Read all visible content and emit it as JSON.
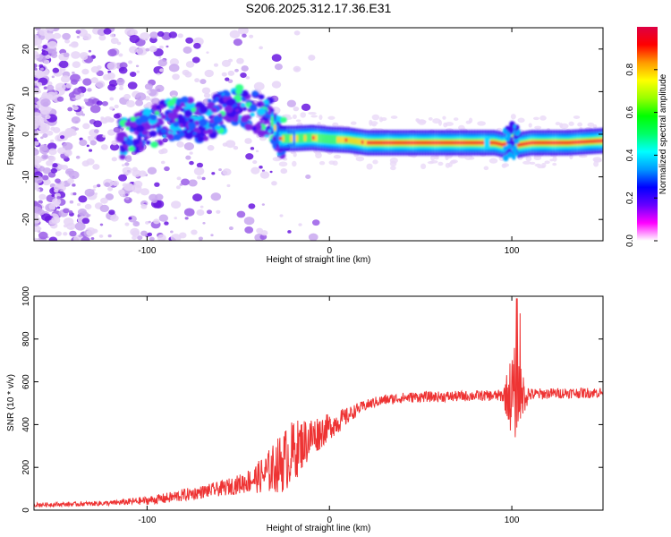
{
  "title": "S206.2025.312.17.36.E31",
  "chart_data": [
    {
      "type": "heatmap",
      "title": "S206.2025.312.17.36.E31",
      "xlabel": "Height of straight line (km)",
      "ylabel": "Frequency (Hz)",
      "xlim": [
        -162,
        150
      ],
      "ylim": [
        -25,
        25
      ],
      "xticks": [
        -100,
        0,
        100
      ],
      "yticks": [
        -20,
        -10,
        0,
        10,
        20
      ],
      "colorbar": {
        "label": "Normalized spectral amplitude",
        "range": [
          0,
          1
        ],
        "ticks": [
          0.0,
          0.2,
          0.4,
          0.6,
          0.8
        ],
        "colors": [
          "#ffffff",
          "#ff00ff",
          "#6600ff",
          "#0000ff",
          "#0099ff",
          "#00ffff",
          "#00ff66",
          "#00ff00",
          "#99ff00",
          "#ffff00",
          "#ff9900",
          "#ff0000",
          "#dd0044"
        ]
      },
      "ridge": {
        "x": [
          -110,
          -100,
          -90,
          -80,
          -70,
          -60,
          -50,
          -40,
          -33,
          -28,
          -20,
          -10,
          0,
          10,
          20,
          40,
          60,
          80,
          90,
          95,
          100,
          103,
          110,
          130,
          150
        ],
        "y": [
          -1,
          1,
          3,
          4,
          3,
          5,
          7,
          5,
          4,
          -1,
          -1,
          -0.8,
          -1.2,
          -1.4,
          -2,
          -2,
          -2,
          -2,
          -2,
          -2.5,
          -1,
          -2.5,
          -2,
          -2,
          -1.5
        ]
      }
    },
    {
      "type": "line",
      "xlabel": "Height of straight line (km)",
      "ylabel": "SNR (10 * v/v)",
      "xlim": [
        -162,
        150
      ],
      "ylim": [
        0,
        1000
      ],
      "xticks": [
        -100,
        0,
        100
      ],
      "yticks": [
        0,
        200,
        400,
        600,
        800,
        1000
      ],
      "series": [
        {
          "name": "SNR",
          "color": "#ee3333",
          "x": [
            -162,
            -140,
            -120,
            -100,
            -90,
            -80,
            -70,
            -60,
            -50,
            -45,
            -40,
            -35,
            -30,
            -25,
            -20,
            -15,
            -10,
            -5,
            0,
            5,
            10,
            15,
            20,
            25,
            30,
            40,
            50,
            60,
            70,
            80,
            90,
            95,
            100,
            103,
            105,
            110,
            120,
            130,
            140,
            150
          ],
          "values": [
            25,
            28,
            33,
            45,
            55,
            70,
            85,
            100,
            120,
            135,
            150,
            170,
            200,
            230,
            270,
            310,
            340,
            365,
            390,
            415,
            440,
            470,
            490,
            505,
            515,
            525,
            530,
            530,
            532,
            535,
            535,
            535,
            540,
            540,
            545,
            540,
            545,
            548,
            548,
            550
          ],
          "noise": [
            10,
            10,
            12,
            20,
            25,
            30,
            30,
            35,
            45,
            55,
            70,
            95,
            120,
            150,
            150,
            120,
            100,
            80,
            60,
            55,
            40,
            30,
            25,
            25,
            25,
            25,
            25,
            25,
            25,
            25,
            25,
            30,
            200,
            250,
            120,
            30,
            25,
            25,
            25,
            25
          ]
        }
      ]
    }
  ]
}
